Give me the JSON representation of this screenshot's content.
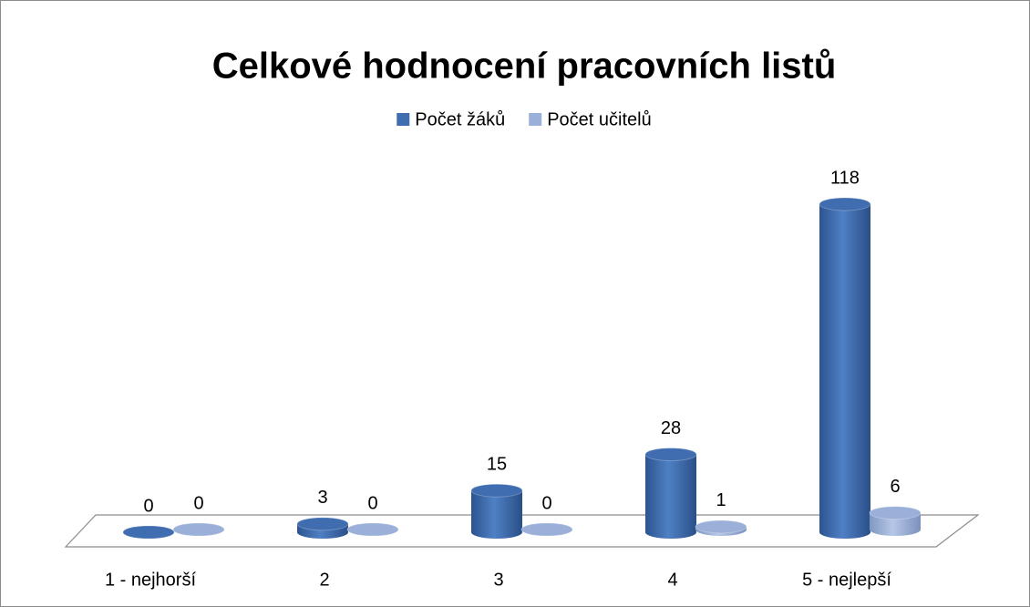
{
  "chart_data": {
    "type": "bar3d",
    "title": "Celkové hodnocení pracovních listů",
    "categories": [
      "1 - nejhorší",
      "2",
      "3",
      "4",
      "5 - nejlepší"
    ],
    "series": [
      {
        "name": "Počet žáků",
        "color": "#3f6db0",
        "values": [
          0,
          3,
          15,
          28,
          118
        ]
      },
      {
        "name": "Počet učitelů",
        "color": "#9bb0d8",
        "values": [
          0,
          0,
          0,
          1,
          6
        ]
      }
    ],
    "legend": "top"
  }
}
